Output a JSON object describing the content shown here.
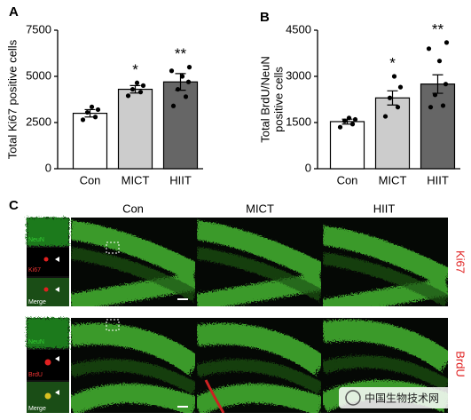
{
  "chart_data": [
    {
      "type": "bar",
      "panel_label": "A",
      "y_label": [
        "Total Ki67 positive cells"
      ],
      "categories": [
        "Con",
        "MICT",
        "HIIT"
      ],
      "values": [
        3000,
        4300,
        4700
      ],
      "errors": [
        200,
        200,
        450
      ],
      "points": [
        [
          2650,
          2800,
          3050,
          3200,
          3350
        ],
        [
          3950,
          4150,
          4300,
          4500,
          4650
        ],
        [
          3400,
          3900,
          4300,
          4700,
          5000,
          5300,
          5500
        ]
      ],
      "annotations": [
        null,
        "*",
        "**"
      ],
      "colors": [
        "#ffffff",
        "#cccccc",
        "#666666"
      ],
      "ylim": [
        0,
        7500
      ],
      "yticks": [
        0,
        2500,
        5000,
        7500
      ]
    },
    {
      "type": "bar",
      "panel_label": "B",
      "y_label": [
        "Total BrdU/NeuN",
        "positive cells"
      ],
      "categories": [
        "Con",
        "MICT",
        "HIIT"
      ],
      "values": [
        1530,
        2300,
        2750
      ],
      "errors": [
        80,
        230,
        300
      ],
      "points": [
        [
          1350,
          1450,
          1550,
          1600,
          1650
        ],
        [
          1700,
          2000,
          2300,
          2650,
          3000
        ],
        [
          2000,
          2050,
          2400,
          2750,
          3500,
          3900,
          4100
        ]
      ],
      "annotations": [
        null,
        "*",
        "**"
      ],
      "colors": [
        "#ffffff",
        "#cccccc",
        "#666666"
      ],
      "ylim": [
        0,
        4500
      ],
      "yticks": [
        0,
        1500,
        3000,
        4500
      ]
    }
  ],
  "panel_c": {
    "label": "C",
    "columns": [
      "Con",
      "MICT",
      "HIIT"
    ],
    "rows": [
      "Ki67",
      "BrdU"
    ],
    "insets": [
      [
        "NeuN",
        "Ki67",
        "Merge"
      ],
      [
        "NeuN",
        "BrdU",
        "Merge"
      ]
    ]
  },
  "watermark": "中国生物技术网"
}
